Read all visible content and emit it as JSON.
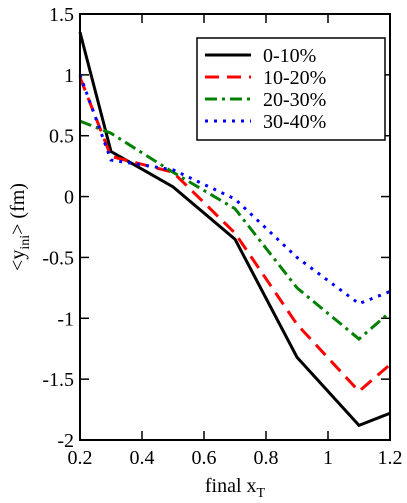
{
  "chart_data": {
    "type": "line",
    "xlabel": {
      "main": "final x",
      "sub": "T"
    },
    "ylabel": {
      "main": "<y",
      "sub": "ini",
      "end": "> (fm)"
    },
    "x": [
      0.2,
      0.3,
      0.5,
      0.7,
      0.9,
      1.1,
      1.2
    ],
    "series": [
      {
        "name": "0-10%",
        "color": "#000000",
        "dash": "solid",
        "values": [
          1.35,
          0.37,
          0.08,
          -0.35,
          -1.32,
          -1.88,
          -1.78
        ]
      },
      {
        "name": "10-20%",
        "color": "#ff0000",
        "dash": "dashed",
        "values": [
          0.98,
          0.33,
          0.2,
          -0.3,
          -1.05,
          -1.6,
          -1.38
        ]
      },
      {
        "name": "20-30%",
        "color": "#008000",
        "dash": "dashdot",
        "values": [
          0.62,
          0.52,
          0.2,
          -0.1,
          -0.75,
          -1.17,
          -0.95
        ]
      },
      {
        "name": "30-40%",
        "color": "#0000ff",
        "dash": "dotted",
        "values": [
          1.0,
          0.3,
          0.22,
          -0.02,
          -0.5,
          -0.88,
          -0.78
        ]
      }
    ],
    "xlim": [
      0.2,
      1.2
    ],
    "xticks": [
      0.2,
      0.4,
      0.6,
      0.8,
      1,
      1.2
    ],
    "ylim": [
      -2,
      1.5
    ],
    "yticks": [
      -2,
      -1.5,
      -1,
      -0.5,
      0,
      0.5,
      1,
      1.5
    ],
    "legend": "upper right",
    "grid": false
  }
}
